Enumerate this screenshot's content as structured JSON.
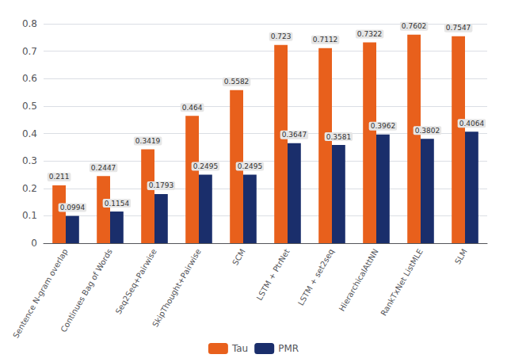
{
  "chart_data": {
    "type": "bar",
    "categories": [
      "Sentence N-gram overlap",
      "Continues Bag of Words",
      "Seq2Seq+Pairwise",
      "SkipThought+Pairwise",
      "SCM",
      "LSTM + PtrNet",
      "LSTM + set2seq",
      "HierarchicalAttNN",
      "RankTxNet ListMLE",
      "SLM"
    ],
    "series": [
      {
        "name": "Tau",
        "color": "#E8601C",
        "values": [
          0.211,
          0.2447,
          0.3419,
          0.464,
          0.5582,
          0.723,
          0.7112,
          0.7322,
          0.7602,
          0.7547
        ]
      },
      {
        "name": "PMR",
        "color": "#1A2E6B",
        "values": [
          0.0994,
          0.1154,
          0.1793,
          0.2495,
          0.2495,
          0.3647,
          0.3581,
          0.3962,
          0.3802,
          0.4064
        ]
      }
    ],
    "ylim": [
      0,
      0.8
    ],
    "yticks": [
      0,
      0.1,
      0.2,
      0.3,
      0.4,
      0.5,
      0.6,
      0.7,
      0.8
    ],
    "grid": true,
    "legend": "bottom",
    "data_labels": true
  }
}
